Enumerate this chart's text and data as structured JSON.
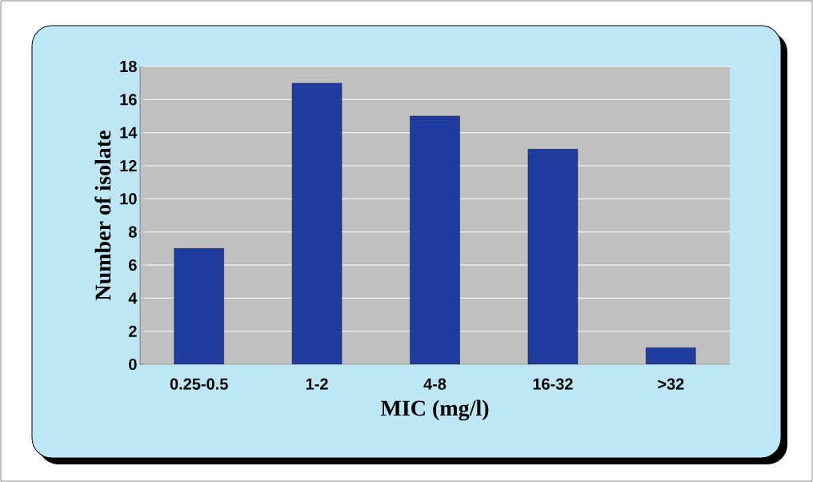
{
  "chart_data": {
    "type": "bar",
    "xlabel": "MIC (mg/l)",
    "ylabel": "Number of isolate",
    "categories": [
      "0.25-0.5",
      "1-2",
      "4-8",
      "16-32",
      ">32"
    ],
    "values": [
      7,
      17,
      15,
      13,
      1
    ],
    "color": "#1f3c9e",
    "ylim": [
      0,
      18
    ],
    "yticks": [
      0,
      2,
      4,
      6,
      8,
      10,
      12,
      14,
      16,
      18
    ],
    "grid": "y"
  }
}
